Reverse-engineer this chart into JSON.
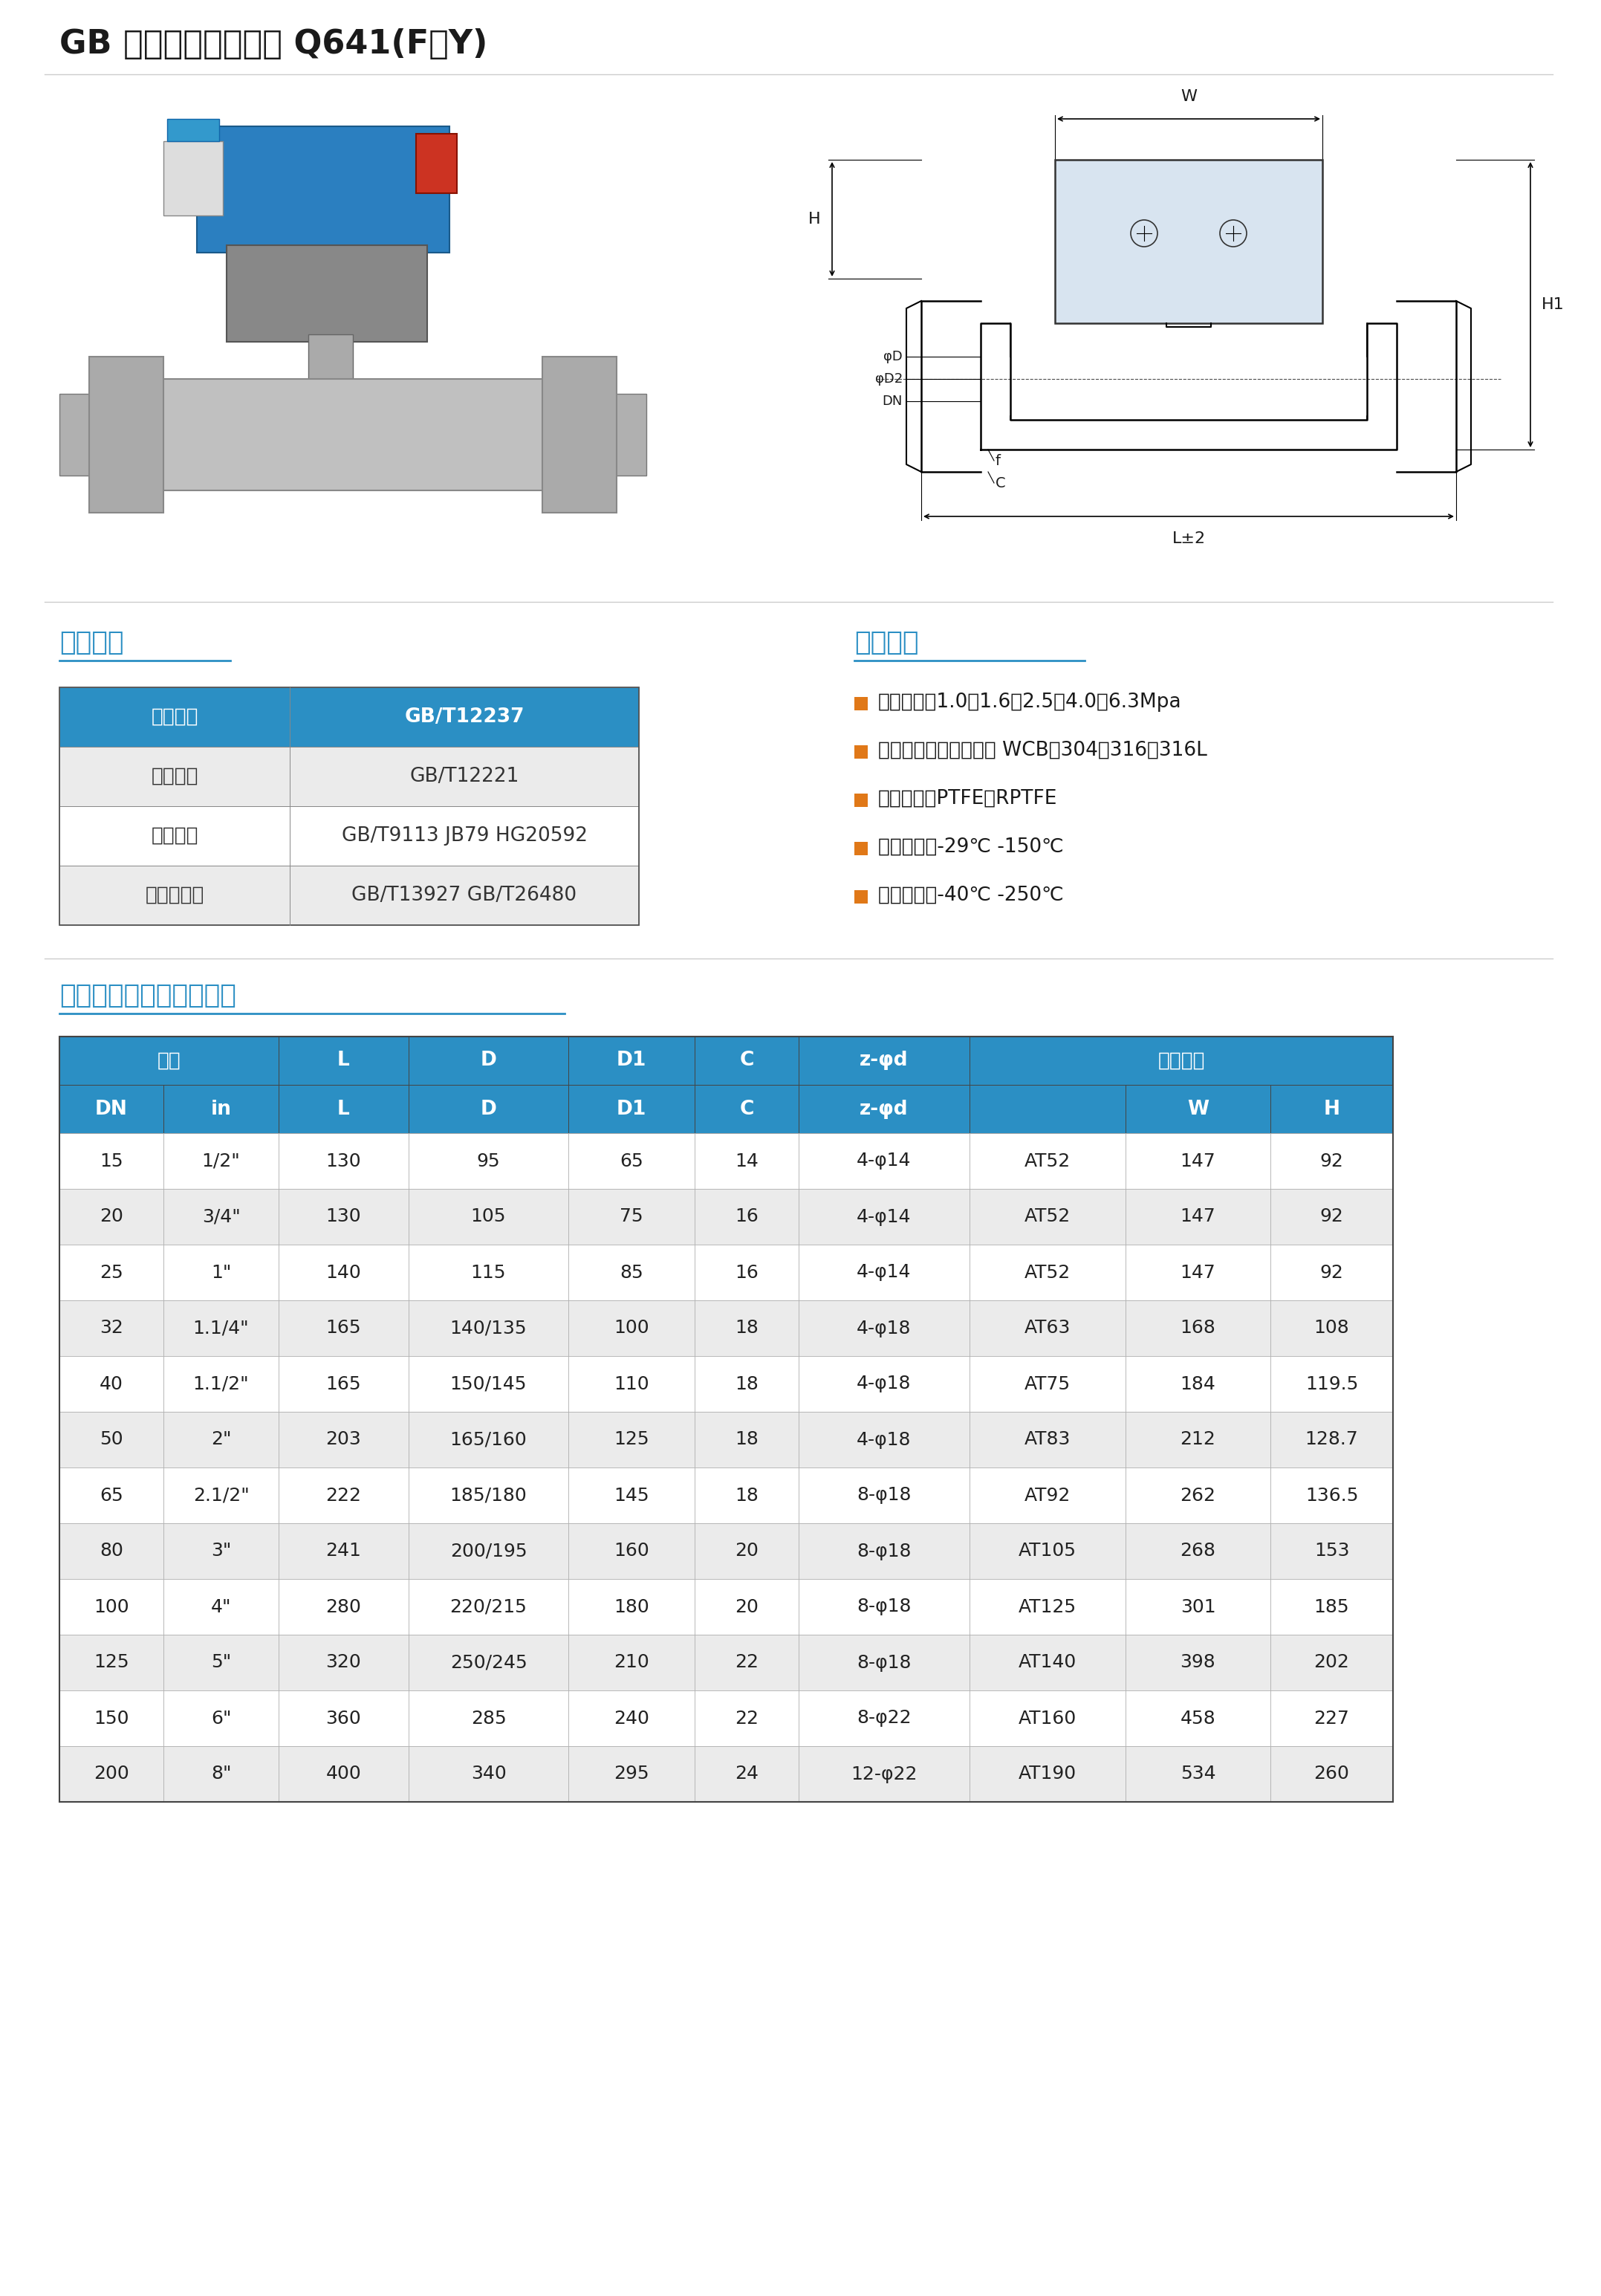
{
  "title": "GB 标准国标气动球阀 Q641(F、Y)",
  "title_fontsize": 32,
  "title_color": "#1a1a1a",
  "section_color": "#2b8fc4",
  "page_bg": "#ffffff",
  "tech_specs_title": "技术规范",
  "perf_specs_title": "性能规范",
  "dims_title": "主要外形及连接法兰尺寸",
  "tech_table": {
    "header_bg": "#2b8fc4",
    "header_text_color": "#ffffff",
    "alt_row_bg": "#ebebeb",
    "white_row_bg": "#ffffff",
    "border_color": "#aaaaaa",
    "rows": [
      [
        "设计标准",
        "GB/T12237"
      ],
      [
        "结构长度",
        "GB/T12221"
      ],
      [
        "连接法兰",
        "GB/T9113 JB79 HG20592"
      ],
      [
        "试验与检验",
        "GB/T13927 GB/T26480"
      ]
    ]
  },
  "perf_specs": [
    "公称压力：1.0、1.6、2.5、4.0、6.3Mpa",
    "阀阀门主体材料：碳钢 WCB、304、316、316L",
    "密封材料：PTFE、RPTFE",
    "适用温度：-29℃ -150℃",
    "适用温度：-40℃ -250℃"
  ],
  "bullet_color": "#e07818",
  "dims_table": {
    "header_bg": "#2b8fc4",
    "header_text_color": "#ffffff",
    "alt_row_bg": "#ebebeb",
    "white_row_bg": "#ffffff",
    "border_color": "#aaaaaa",
    "rows": [
      [
        "15",
        "1/2\"",
        "130",
        "95",
        "65",
        "14",
        "4-φ14",
        "AT52",
        "147",
        "92"
      ],
      [
        "20",
        "3/4\"",
        "130",
        "105",
        "75",
        "16",
        "4-φ14",
        "AT52",
        "147",
        "92"
      ],
      [
        "25",
        "1\"",
        "140",
        "115",
        "85",
        "16",
        "4-φ14",
        "AT52",
        "147",
        "92"
      ],
      [
        "32",
        "1.1/4\"",
        "165",
        "140/135",
        "100",
        "18",
        "4-φ18",
        "AT63",
        "168",
        "108"
      ],
      [
        "40",
        "1.1/2\"",
        "165",
        "150/145",
        "110",
        "18",
        "4-φ18",
        "AT75",
        "184",
        "119.5"
      ],
      [
        "50",
        "2\"",
        "203",
        "165/160",
        "125",
        "18",
        "4-φ18",
        "AT83",
        "212",
        "128.7"
      ],
      [
        "65",
        "2.1/2\"",
        "222",
        "185/180",
        "145",
        "18",
        "8-φ18",
        "AT92",
        "262",
        "136.5"
      ],
      [
        "80",
        "3\"",
        "241",
        "200/195",
        "160",
        "20",
        "8-φ18",
        "AT105",
        "268",
        "153"
      ],
      [
        "100",
        "4\"",
        "280",
        "220/215",
        "180",
        "20",
        "8-φ18",
        "AT125",
        "301",
        "185"
      ],
      [
        "125",
        "5\"",
        "320",
        "250/245",
        "210",
        "22",
        "8-φ18",
        "AT140",
        "398",
        "202"
      ],
      [
        "150",
        "6\"",
        "360",
        "285",
        "240",
        "22",
        "8-φ22",
        "AT160",
        "458",
        "227"
      ],
      [
        "200",
        "8\"",
        "400",
        "340",
        "295",
        "24",
        "12-φ22",
        "AT190",
        "534",
        "260"
      ]
    ]
  },
  "schematic": {
    "label_W": "W",
    "label_H": "H",
    "label_H1": "H1",
    "label_L": "L±2",
    "label_f": "f",
    "label_C": "C",
    "label_phiD": "φD",
    "label_phiD2": "φD2",
    "label_DN": "DN"
  }
}
